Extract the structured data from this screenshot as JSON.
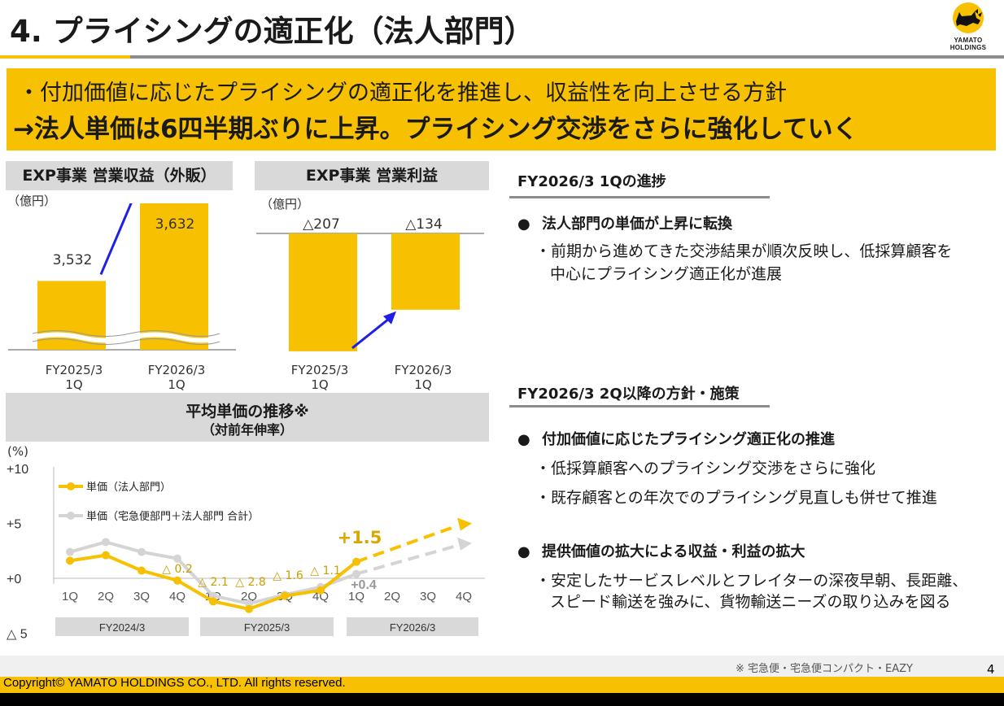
{
  "header": {
    "title": "4. プライシングの適正化（法人部門）",
    "logo_line1": "YAMATO",
    "logo_line2": "HOLDINGS"
  },
  "summary": {
    "line1": "・付加価値に応じたプライシングの適正化を推進し、収益性を向上させる方針",
    "line2": "→法人単価は6四半期ぶりに上昇。プライシング交渉をさらに強化していく"
  },
  "colors": {
    "accent_yellow": "#f7c000",
    "header_gray": "#d9d9d9",
    "arrow_blue": "#1f1fe6",
    "line_gray": "#d4d4d4"
  },
  "chart_data": [
    {
      "type": "bar",
      "title": "EXP事業 営業収益（外販）",
      "unit": "（億円）",
      "categories": [
        "FY2025/3 1Q",
        "FY2026/3 1Q"
      ],
      "category_lines": [
        [
          "FY2025/3",
          "1Q"
        ],
        [
          "FY2026/3",
          "1Q"
        ]
      ],
      "values": [
        3532,
        3632
      ],
      "value_labels": [
        "3,532",
        "3,632"
      ],
      "axis_break": true
    },
    {
      "type": "bar",
      "title": "EXP事業 営業利益",
      "unit": "（億円）",
      "categories": [
        "FY2025/3 1Q",
        "FY2026/3 1Q"
      ],
      "category_lines": [
        [
          "FY2025/3",
          "1Q"
        ],
        [
          "FY2026/3",
          "1Q"
        ]
      ],
      "values": [
        -207,
        -134
      ],
      "value_labels": [
        "△207",
        "△134"
      ]
    },
    {
      "type": "line",
      "title": "平均単価の推移※",
      "subtitle": "（対前年伸率）",
      "ylabel": "(%)",
      "ylim": [
        -5,
        10
      ],
      "yticks": [
        {
          "v": 10,
          "label": "+10"
        },
        {
          "v": 5,
          "label": "+5"
        },
        {
          "v": 0,
          "label": "+0"
        },
        {
          "v": -5,
          "label": "△ 5"
        }
      ],
      "categories": [
        "1Q",
        "2Q",
        "3Q",
        "4Q",
        "1Q",
        "2Q",
        "3Q",
        "4Q",
        "1Q",
        "2Q",
        "3Q",
        "4Q"
      ],
      "fiscal_years": [
        "FY2024/3",
        "FY2025/3",
        "FY2026/3"
      ],
      "legend_position": "top-left",
      "series": [
        {
          "name": "単価（法人部門）",
          "color": "#f7c000",
          "values": [
            1.6,
            2.1,
            0.7,
            -0.2,
            -2.1,
            -2.8,
            -1.6,
            -1.1,
            1.5,
            null,
            null,
            null
          ],
          "forecast_end": 5.0,
          "labels": [
            {
              "i": 3,
              "text": "△ 0.2"
            },
            {
              "i": 4,
              "text": "△ 2.1"
            },
            {
              "i": 5,
              "text": "△ 2.8"
            },
            {
              "i": 6,
              "text": "△ 1.6"
            },
            {
              "i": 7,
              "text": "△ 1.1"
            },
            {
              "i": 8,
              "text": "+1.5"
            }
          ]
        },
        {
          "name": "単価（宅急便部門＋法人部門 合計）",
          "color": "#d4d4d4",
          "values": [
            2.4,
            3.3,
            2.4,
            1.8,
            -1.6,
            -2.3,
            -1.5,
            -0.8,
            0.4,
            null,
            null,
            null
          ],
          "forecast_end": 3.2,
          "labels": [
            {
              "i": 8,
              "text": "+0.4"
            }
          ]
        }
      ]
    }
  ],
  "right": {
    "sec1_title": "FY2026/3 1Qの進捗",
    "sec1_bullet": "法人部門の単価が上昇に転換",
    "sec1_sub1": "・前期から進めてきた交渉結果が順次反映し、低採算顧客を",
    "sec1_sub2": "中心にプライシング適正化が進展",
    "sec2_title": "FY2026/3 2Q以降の方針・施策",
    "sec2_bullet1": "付加価値に応じたプライシング適正化の推進",
    "sec2_sub1": "・低採算顧客へのプライシング交渉をさらに強化",
    "sec2_sub2": "・既存顧客との年次でのプライシング見直しも併せて推進",
    "sec2_bullet2": "提供価値の拡大による収益・利益の拡大",
    "sec2_sub3": "・安定したサービスレベルとフレイターの深夜早朝、長距離、",
    "sec2_sub4": "スピード輸送を強みに、貨物輸送ニーズの取り込みを図る"
  },
  "footer": {
    "footnote": "※ 宅急便・宅急便コンパクト・EAZY",
    "page": "4",
    "copyright": "Copyright© YAMATO HOLDINGS CO., LTD. All rights reserved."
  }
}
